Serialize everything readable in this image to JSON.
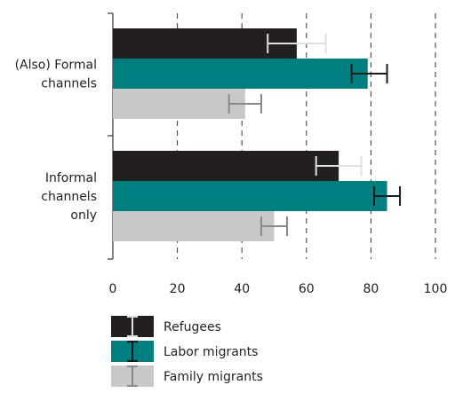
{
  "chart_data": {
    "type": "bar",
    "orientation": "horizontal",
    "categories": [
      [
        "(Also) Formal",
        "channels"
      ],
      [
        "Informal",
        "channels",
        "only"
      ]
    ],
    "series": [
      {
        "name": "Refugees",
        "color": "#231f20",
        "error_color": "#e0e0e0",
        "values": [
          57,
          70
        ],
        "error": [
          [
            48,
            66
          ],
          [
            63,
            77
          ]
        ]
      },
      {
        "name": "Labor migrants",
        "color": "#007f80",
        "error_color": "#1a1a1a",
        "values": [
          79,
          85
        ],
        "error": [
          [
            74,
            85
          ],
          [
            81,
            89
          ]
        ]
      },
      {
        "name": "Family migrants",
        "color": "#c8c8c8",
        "error_color": "#8a8a8a",
        "values": [
          41,
          50
        ],
        "error": [
          [
            36,
            46
          ],
          [
            46,
            54
          ]
        ]
      }
    ],
    "xlim": [
      0,
      100
    ],
    "xticks": [
      0,
      20,
      40,
      60,
      80,
      100
    ],
    "grid": "vertical dashed",
    "legend": "bottom-left"
  }
}
